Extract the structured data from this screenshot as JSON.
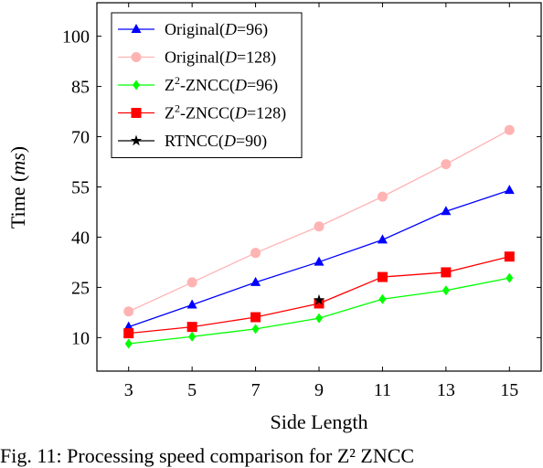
{
  "chart_data": {
    "type": "line",
    "title": "",
    "xlabel": "Side Length",
    "ylabel_parts": [
      "Time (",
      "ms",
      ")"
    ],
    "x": [
      3,
      5,
      7,
      9,
      11,
      13,
      15
    ],
    "xlim": [
      2,
      16
    ],
    "ylim": [
      0,
      110
    ],
    "yticks": [
      10,
      25,
      40,
      55,
      70,
      85,
      100
    ],
    "grid": false,
    "legend_position": "top-left",
    "series": [
      {
        "name_parts": [
          "Original(",
          "D",
          "=96)"
        ],
        "color": "#0000ff",
        "marker": "triangle",
        "x": [
          3,
          5,
          7,
          9,
          11,
          13,
          15
        ],
        "y": [
          13.2,
          19.8,
          26.5,
          32.6,
          39.2,
          47.7,
          54.0
        ]
      },
      {
        "name_parts": [
          "Original(",
          "D",
          "=128)"
        ],
        "color": "#ffb3b3",
        "marker": "circle",
        "x": [
          3,
          5,
          7,
          9,
          11,
          13,
          15
        ],
        "y": [
          17.8,
          26.5,
          35.3,
          43.2,
          52.1,
          61.8,
          72.0
        ]
      },
      {
        "name_parts": [
          "Z",
          "2",
          "-ZNCC(",
          "D",
          "=96)"
        ],
        "color": "#00ff00",
        "marker": "diamond",
        "x": [
          3,
          5,
          7,
          9,
          11,
          13,
          15
        ],
        "y": [
          8.2,
          10.3,
          12.6,
          15.8,
          21.5,
          24.1,
          27.8
        ]
      },
      {
        "name_parts": [
          "Z",
          "2",
          "-ZNCC(",
          "D",
          "=128)"
        ],
        "color": "#ff0000",
        "marker": "square",
        "x": [
          3,
          5,
          7,
          9,
          11,
          13,
          15
        ],
        "y": [
          11.3,
          13.2,
          16.1,
          20.2,
          28.1,
          29.5,
          34.2
        ]
      },
      {
        "name_parts": [
          "RTNCC(",
          "D",
          "=90)"
        ],
        "color": "#000000",
        "marker": "star",
        "x": [
          9
        ],
        "y": [
          21.2
        ]
      }
    ]
  },
  "caption": "Fig. 11: Processing speed comparison for Z² ZNCC"
}
